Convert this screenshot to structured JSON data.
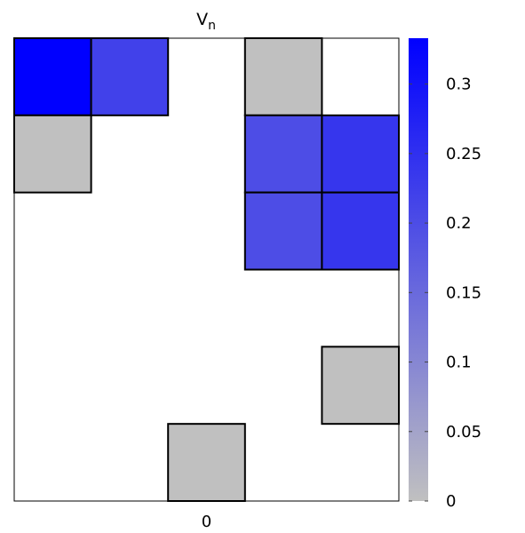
{
  "chart_data": {
    "type": "heatmap",
    "title": "V",
    "title_subscript": "n",
    "xlabel": "",
    "ylabel": "",
    "x_tick_labels": [
      "0"
    ],
    "rows": 6,
    "cols": 5,
    "cells": [
      {
        "row": 0,
        "col": 0,
        "value": 0.333
      },
      {
        "row": 0,
        "col": 1,
        "value": 0.22
      },
      {
        "row": 0,
        "col": 3,
        "value": 0
      },
      {
        "row": 1,
        "col": 0,
        "value": 0
      },
      {
        "row": 1,
        "col": 3,
        "value": 0.2
      },
      {
        "row": 1,
        "col": 4,
        "value": 0.24
      },
      {
        "row": 2,
        "col": 3,
        "value": 0.2
      },
      {
        "row": 2,
        "col": 4,
        "value": 0.24
      },
      {
        "row": 4,
        "col": 4,
        "value": 0
      },
      {
        "row": 5,
        "col": 2,
        "value": 0
      }
    ],
    "colorbar": {
      "min": 0,
      "max": 0.333,
      "ticks": [
        0,
        0.05,
        0.1,
        0.15,
        0.2,
        0.25,
        0.3
      ],
      "tick_labels": [
        "0",
        "0.05",
        "0.1",
        "0.15",
        "0.2",
        "0.25",
        "0.3"
      ],
      "color_low": "#c0c0c0",
      "color_high": "#0000ff"
    },
    "grid": false
  }
}
